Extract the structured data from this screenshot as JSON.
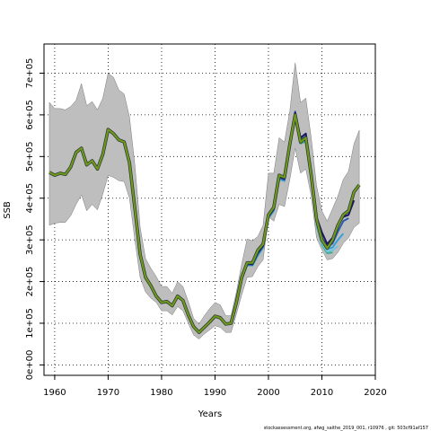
{
  "chart_data": {
    "type": "line",
    "xlabel": "Years",
    "ylabel": "SSB",
    "xlim": [
      1958,
      2020
    ],
    "ylim": [
      -25000,
      770000
    ],
    "x_ticks": [
      1960,
      1970,
      1980,
      1990,
      2000,
      2010,
      2020
    ],
    "x_tick_labels": [
      "1960",
      "1970",
      "1980",
      "1990",
      "2000",
      "2010",
      "2020"
    ],
    "y_ticks": [
      0,
      100000,
      200000,
      300000,
      400000,
      500000,
      600000,
      700000
    ],
    "y_tick_labels": [
      "0e+00",
      "1e+05",
      "2e+05",
      "3e+05",
      "4e+05",
      "5e+05",
      "6e+05",
      "7e+05"
    ],
    "grid": true,
    "colors": {
      "band": "#bebebe",
      "band_edge": "#7a7a7a",
      "main": "#6a9a1e",
      "main_outline": "#2f2f2f",
      "retro": [
        "#1b1464",
        "#2a5ab0",
        "#35a0d8",
        "#6ec6e4",
        "#3fae8f"
      ]
    },
    "band_x": [
      1959,
      1960,
      1961,
      1962,
      1963,
      1964,
      1965,
      1966,
      1967,
      1968,
      1969,
      1970,
      1971,
      1972,
      1973,
      1974,
      1975,
      1976,
      1977,
      1978,
      1979,
      1980,
      1981,
      1982,
      1983,
      1984,
      1985,
      1986,
      1987,
      1988,
      1989,
      1990,
      1991,
      1992,
      1993,
      1994,
      1995,
      1996,
      1997,
      1998,
      1999,
      2000,
      2001,
      2002,
      2003,
      2004,
      2005,
      2006,
      2007,
      2008,
      2009,
      2010,
      2011,
      2012,
      2013,
      2014,
      2015,
      2016,
      2017
    ],
    "band_upper": [
      630000,
      615000,
      615000,
      612000,
      620000,
      635000,
      675000,
      622000,
      632000,
      612000,
      640000,
      700000,
      690000,
      660000,
      650000,
      595000,
      480000,
      330000,
      255000,
      232000,
      212000,
      188000,
      188000,
      172000,
      200000,
      188000,
      152000,
      112000,
      98000,
      118000,
      135000,
      150000,
      144000,
      118000,
      118000,
      175000,
      242000,
      302000,
      298000,
      308000,
      335000,
      460000,
      460000,
      545000,
      535000,
      610000,
      725000,
      630000,
      640000,
      545000,
      430000,
      370000,
      345000,
      375000,
      405000,
      445000,
      465000,
      530000,
      563000
    ],
    "band_lower": [
      335000,
      340000,
      342000,
      342000,
      358000,
      385000,
      408000,
      370000,
      385000,
      372000,
      410000,
      455000,
      450000,
      442000,
      440000,
      400000,
      300000,
      210000,
      175000,
      160000,
      150000,
      130000,
      130000,
      120000,
      140000,
      130000,
      100000,
      72000,
      62000,
      74000,
      84000,
      94000,
      90000,
      78000,
      78000,
      122000,
      168000,
      210000,
      212000,
      236000,
      252000,
      355000,
      345000,
      385000,
      380000,
      445000,
      520000,
      460000,
      470000,
      405000,
      305000,
      276000,
      252000,
      255000,
      270000,
      292000,
      305000,
      330000,
      340000
    ],
    "series": [
      {
        "x": [
          1959,
          1960,
          1961,
          1962,
          1963,
          1964,
          1965,
          1966,
          1967,
          1968,
          1969,
          1970,
          1971,
          1972,
          1973,
          1974,
          1975,
          1976,
          1977,
          1978,
          1979,
          1980,
          1981,
          1982,
          1983,
          1984,
          1985,
          1986,
          1987,
          1988,
          1989,
          1990,
          1991,
          1992,
          1993,
          1994,
          1995,
          1996,
          1997,
          1998,
          1999,
          2000,
          2001,
          2002,
          2003,
          2004,
          2005,
          2006,
          2007,
          2008,
          2009,
          2010,
          2011,
          2012,
          2013,
          2014,
          2015,
          2016,
          2017
        ],
        "values": [
          462000,
          455000,
          460000,
          457000,
          475000,
          510000,
          520000,
          480000,
          490000,
          470000,
          505000,
          565000,
          555000,
          540000,
          535000,
          485000,
          375000,
          265000,
          210000,
          190000,
          165000,
          150000,
          152000,
          142000,
          165000,
          155000,
          120000,
          92000,
          78000,
          90000,
          103000,
          117000,
          113000,
          98000,
          100000,
          150000,
          210000,
          245000,
          245000,
          275000,
          290000,
          360000,
          378000,
          455000,
          450000,
          530000,
          600000,
          535000,
          545000,
          455000,
          350000,
          300000,
          280000,
          300000,
          335000,
          360000,
          370000,
          415000,
          432000
        ]
      },
      {
        "x": [
          1995,
          1996,
          1997,
          1998,
          1999,
          2000,
          2001,
          2002,
          2003,
          2004,
          2005,
          2006,
          2007,
          2008,
          2009,
          2010,
          2011,
          2012,
          2013,
          2014,
          2015,
          2016
        ],
        "values": [
          208000,
          243000,
          242000,
          270000,
          286000,
          357000,
          375000,
          452000,
          447000,
          528000,
          605000,
          545000,
          555000,
          462000,
          355000,
          318000,
          290000,
          305000,
          335000,
          355000,
          360000,
          395000
        ]
      },
      {
        "x": [
          1995,
          1996,
          1997,
          1998,
          1999,
          2000,
          2001,
          2002,
          2003,
          2004,
          2005,
          2006,
          2007,
          2008,
          2009,
          2010,
          2011,
          2012,
          2013,
          2014,
          2015
        ],
        "values": [
          206000,
          241000,
          240000,
          266000,
          284000,
          355000,
          372000,
          449000,
          444000,
          525000,
          608000,
          540000,
          548000,
          458000,
          348000,
          305000,
          282000,
          292000,
          320000,
          345000,
          352000
        ]
      },
      {
        "x": [
          1995,
          1996,
          1997,
          1998,
          1999,
          2000,
          2001,
          2002,
          2003,
          2004,
          2005,
          2006,
          2007,
          2008,
          2009,
          2010,
          2011,
          2012,
          2013,
          2014
        ],
        "values": [
          205000,
          240000,
          240000,
          264000,
          283000,
          354000,
          371000,
          447000,
          443000,
          522000,
          602000,
          537000,
          543000,
          455000,
          345000,
          300000,
          278000,
          282000,
          300000,
          315000
        ]
      },
      {
        "x": [
          1995,
          1996,
          1997,
          1998,
          1999,
          2000,
          2001,
          2002,
          2003,
          2004,
          2005,
          2006,
          2007,
          2008,
          2009,
          2010,
          2011,
          2012,
          2013
        ],
        "values": [
          205000,
          240000,
          239000,
          262000,
          282000,
          353000,
          370000,
          446000,
          442000,
          520000,
          598000,
          534000,
          540000,
          452000,
          340000,
          292000,
          272000,
          275000,
          285000
        ]
      },
      {
        "x": [
          1995,
          1996,
          1997,
          1998,
          1999,
          2000,
          2001,
          2002,
          2003,
          2004,
          2005,
          2006,
          2007,
          2008,
          2009,
          2010,
          2011,
          2012
        ],
        "values": [
          204000,
          239000,
          238000,
          261000,
          281000,
          352000,
          369000,
          445000,
          441000,
          519000,
          596000,
          531000,
          536000,
          449000,
          336000,
          288000,
          268000,
          270000
        ]
      }
    ],
    "footer": "stockassessment.org, afwg_saithe_2019_001, r10976 , git: 503cf91af157"
  }
}
